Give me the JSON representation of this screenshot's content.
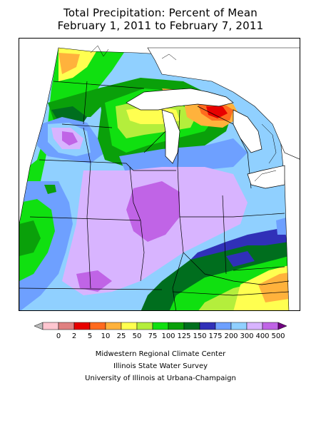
{
  "title": {
    "line1": "Total Precipitation: Percent of Mean",
    "line2": "February 1, 2011 to February 7, 2011"
  },
  "legend": {
    "labels": [
      "0",
      "2",
      "5",
      "10",
      "25",
      "50",
      "75",
      "100",
      "125",
      "150",
      "175",
      "200",
      "300",
      "400",
      "500"
    ],
    "colors": [
      "#bbbbbb",
      "#ffc6d0",
      "#e08080",
      "#e80000",
      "#ff6a1e",
      "#ffb23c",
      "#ffff50",
      "#b4ee3c",
      "#10e010",
      "#0aa00a",
      "#006e1e",
      "#3030b8",
      "#6ea0ff",
      "#90d0ff",
      "#d8b4ff",
      "#c064e6",
      "#700080"
    ]
  },
  "credits": {
    "line1": "Midwestern Regional Climate Center",
    "line2": "Illinois State Water Survey",
    "line3": "University of Illinois at Urbana-Champaign"
  }
}
